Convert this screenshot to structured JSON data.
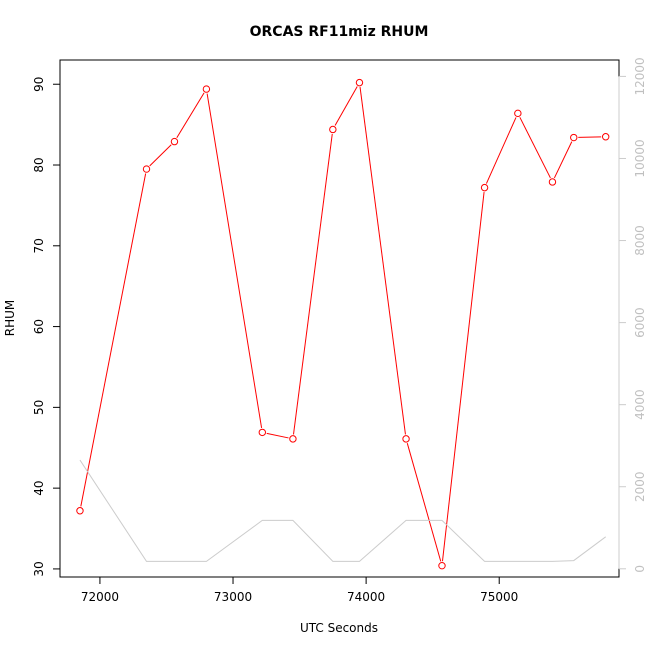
{
  "chart_data": {
    "type": "line",
    "title": "ORCAS RF11miz RHUM",
    "xlabel": "UTC Seconds",
    "ylabel": "RHUM",
    "xlim": [
      71700,
      75900
    ],
    "ylim": [
      29,
      93
    ],
    "y2lim": [
      -200,
      12400
    ],
    "grid": false,
    "x_ticks": [
      72000,
      73000,
      74000,
      75000
    ],
    "y_ticks": [
      30,
      40,
      50,
      60,
      70,
      80,
      90
    ],
    "y2_ticks": [
      0,
      2000,
      4000,
      6000,
      8000,
      10000,
      12000
    ],
    "series": [
      {
        "axis": "left",
        "color": "#ff0000",
        "marker": "circle",
        "x": [
          71850,
          72350,
          72560,
          72800,
          73220,
          73450,
          73750,
          73950,
          74300,
          74570,
          74890,
          75140,
          75400,
          75560,
          75800
        ],
        "y": [
          37.2,
          79.5,
          82.9,
          89.4,
          46.9,
          46.1,
          84.4,
          90.2,
          46.1,
          30.4,
          77.2,
          86.4,
          77.9,
          83.4,
          83.5
        ]
      },
      {
        "axis": "right",
        "color": "#cccccc",
        "marker": "none",
        "x": [
          71850,
          72350,
          72560,
          72800,
          73220,
          73450,
          73750,
          73950,
          74300,
          74570,
          74890,
          75140,
          75400,
          75560,
          75800
        ],
        "y": [
          2650,
          180,
          180,
          180,
          1180,
          1180,
          180,
          180,
          1180,
          1180,
          180,
          180,
          180,
          200,
          780
        ]
      }
    ]
  }
}
